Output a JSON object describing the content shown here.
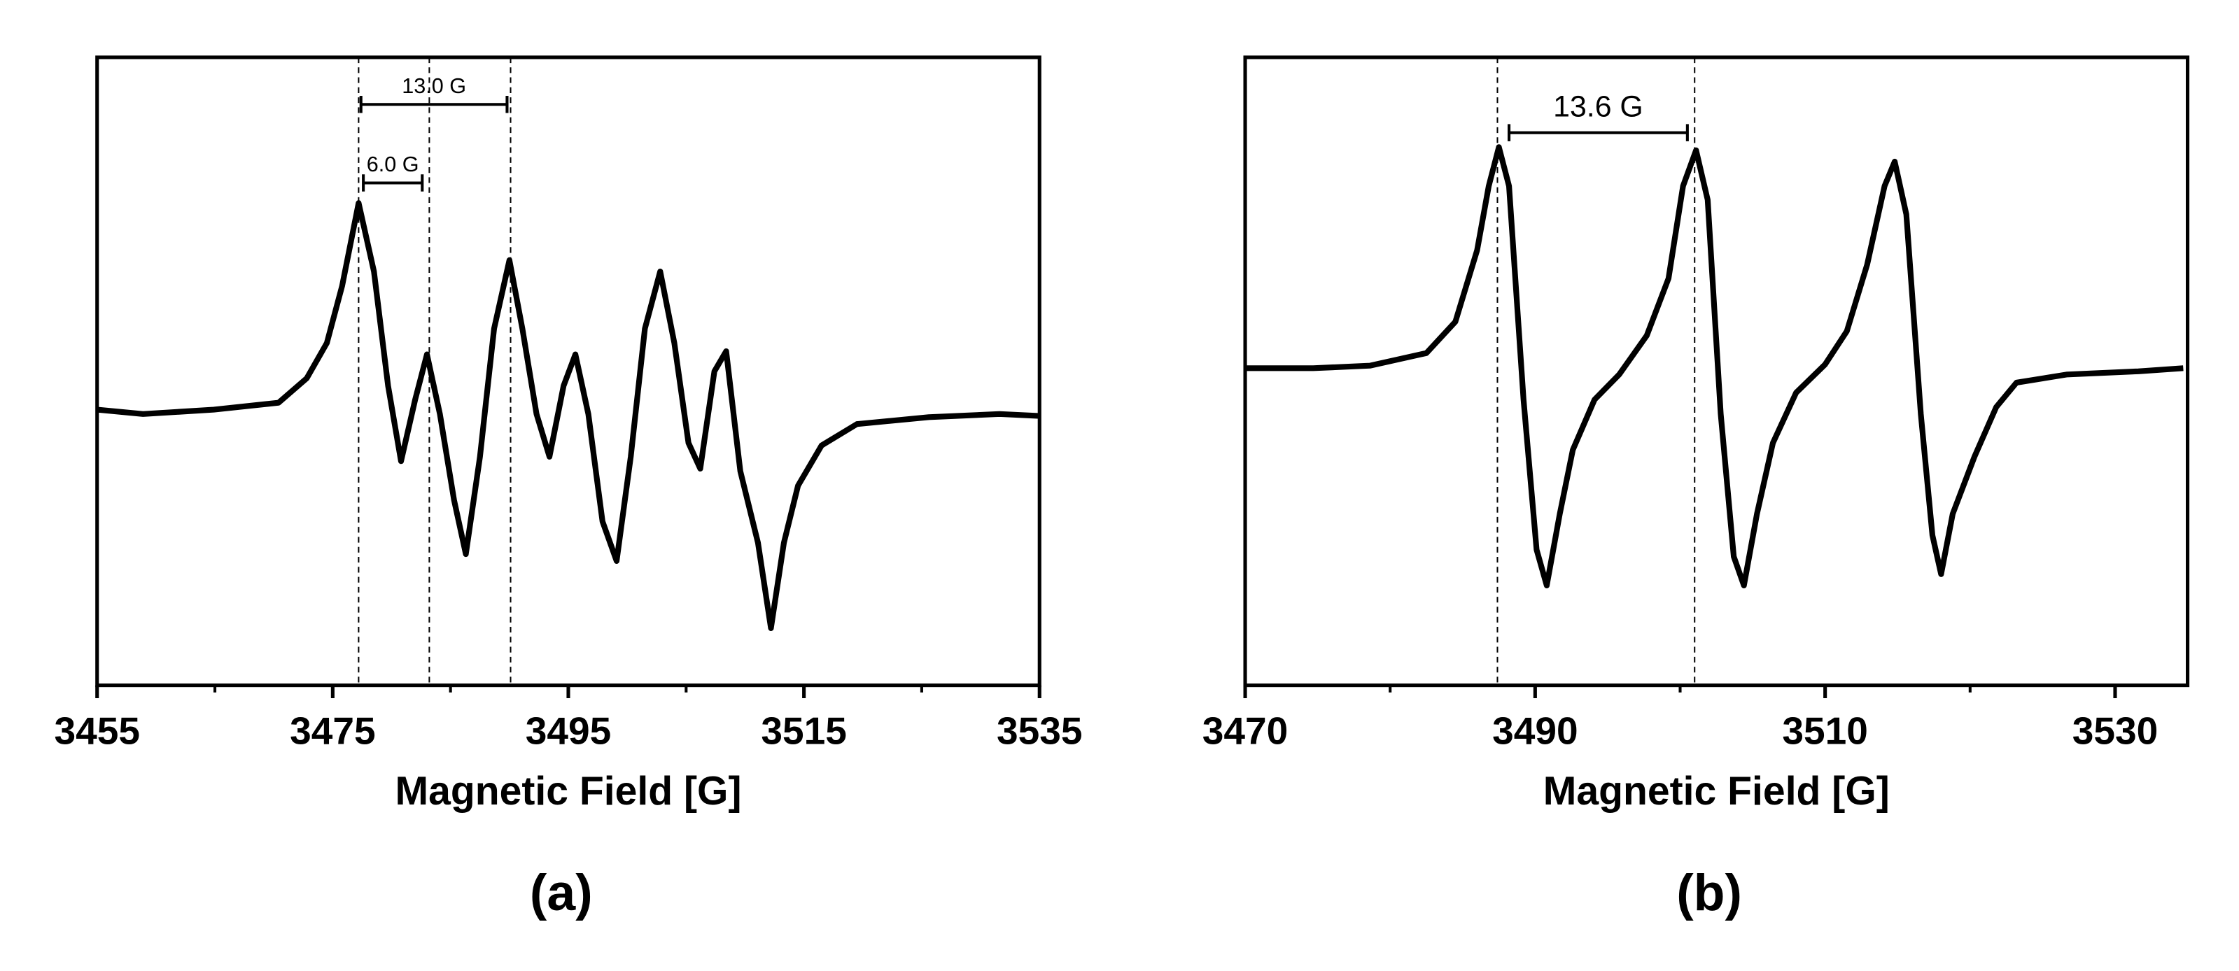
{
  "chart_data": [
    {
      "type": "line",
      "panel": "(a)",
      "xlabel": "Magnetic Field [G]",
      "color": "#000000",
      "xlim": [
        3455,
        3535
      ],
      "xticks": [
        3455,
        3475,
        3495,
        3515,
        3535
      ],
      "xminorticks": [
        3465,
        3485,
        3505,
        3525
      ],
      "ylim": [
        0,
        100
      ],
      "x": [
        3455,
        3458.9,
        3464.9,
        3470.4,
        3472.8,
        3474.5,
        3475.8,
        3477.2,
        3478.5,
        3479.7,
        3480.8,
        3482,
        3483,
        3484.1,
        3485.3,
        3486.3,
        3487.5,
        3488.7,
        3490,
        3491.1,
        3492.3,
        3493.4,
        3494.6,
        3495.6,
        3496.7,
        3497.9,
        3499.1,
        3500.3,
        3501.5,
        3502.8,
        3504,
        3505.2,
        3506.2,
        3507.4,
        3508.4,
        3509.6,
        3511.1,
        3512.2,
        3513.3,
        3514.5,
        3516.5,
        3519.5,
        3525.6,
        3531.6,
        3535
      ],
      "values": [
        43.9,
        43.2,
        43.9,
        45,
        48.9,
        54.5,
        63.6,
        76.8,
        65.9,
        47.7,
        35.7,
        45.5,
        52.7,
        43.2,
        29.5,
        20.9,
        36.4,
        56.8,
        67.7,
        56.8,
        43.2,
        36.4,
        47.7,
        52.7,
        43.2,
        26.1,
        19.8,
        36.4,
        56.8,
        65.9,
        54.5,
        38.6,
        34.5,
        50,
        53.2,
        34.1,
        22.7,
        9.1,
        22.7,
        31.8,
        38.2,
        41.6,
        42.7,
        43.2,
        42.9
      ],
      "markers": [
        3477.2,
        3483.2,
        3490.1
      ],
      "annotations": [
        {
          "text": "13.0 G",
          "x": [
            3477.4,
            3489.8
          ],
          "y": 92.5
        },
        {
          "text": "6.0 G",
          "x": [
            3477.6,
            3482.6
          ],
          "y": 80
        }
      ]
    },
    {
      "type": "line",
      "panel": "(b)",
      "xlabel": "Magnetic Field [G]",
      "color": "#000000",
      "xlim": [
        3470,
        3535
      ],
      "xticks": [
        3470,
        3490,
        3510,
        3530
      ],
      "xminorticks": [
        3480,
        3500,
        3520
      ],
      "ylim": [
        0,
        100
      ],
      "x": [
        3470,
        3474.7,
        3478.6,
        3482.5,
        3484.5,
        3486,
        3486.8,
        3487.5,
        3488.2,
        3489.2,
        3490.1,
        3490.8,
        3491.7,
        3492.6,
        3494.1,
        3495.8,
        3497.7,
        3499.2,
        3500.2,
        3501.1,
        3501.9,
        3502.8,
        3503.7,
        3504.4,
        3505.3,
        3506.4,
        3508,
        3510,
        3511.5,
        3512.9,
        3514.1,
        3514.8,
        3515.6,
        3516.6,
        3517.4,
        3518,
        3518.8,
        3520.3,
        3521.8,
        3523.2,
        3526.7,
        3531.6,
        3534.7
      ],
      "values": [
        50.5,
        50.5,
        50.9,
        52.9,
        57.9,
        69.3,
        79.5,
        85.7,
        79.5,
        45.5,
        21.6,
        15.9,
        27.3,
        37.5,
        45.5,
        49.5,
        55.7,
        64.8,
        79.5,
        85.2,
        77.3,
        43.2,
        20.5,
        15.9,
        27.3,
        38.6,
        46.6,
        51.1,
        56.4,
        67,
        79.5,
        83.4,
        75,
        43.2,
        23.9,
        17.7,
        27.3,
        36.4,
        44.3,
        48.2,
        49.5,
        50,
        50.5
      ],
      "markers": [
        3487.4,
        3501
      ],
      "annotations": [
        {
          "text": "13.6 G",
          "x": [
            3488.2,
            3500.5
          ],
          "y": 88
        }
      ]
    }
  ]
}
